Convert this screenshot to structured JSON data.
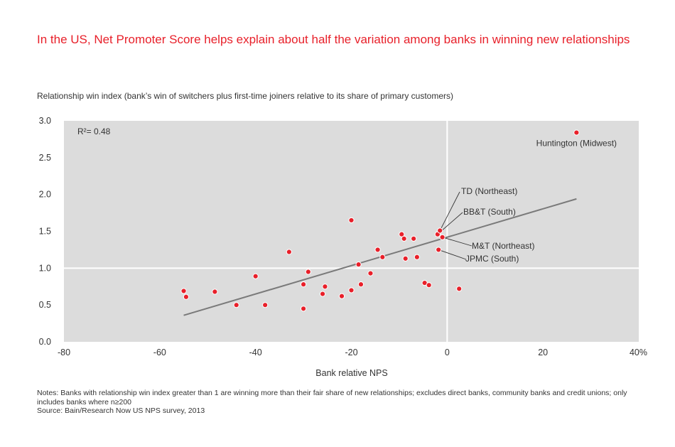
{
  "title": "In the US, Net Promoter Score helps explain about half the variation among banks in winning new relationships",
  "notes": [
    "Notes: Banks with relationship win index greater than 1 are winning more than their fair share of new relationships; excludes direct banks, community banks and credit unions; only includes banks where n≥200",
    "Source: Bain/Research Now US NPS survey, 2013"
  ],
  "colors": {
    "plot_bg": "#dcdcdc",
    "point": "#e8202a",
    "trend": "#7a7a7a",
    "title": "#e8202a"
  },
  "chart_data": {
    "type": "scatter",
    "xlabel": "Bank relative NPS",
    "ylabel": "Relationship win index (bank’s win of switchers plus first-time joiners relative to its share of primary customers)",
    "xlim": [
      -80,
      40
    ],
    "ylim": [
      0,
      3
    ],
    "x_ticks": [
      "-80",
      "-60",
      "-40",
      "-20",
      "0",
      "20",
      "40%"
    ],
    "x_tick_values": [
      -80,
      -60,
      -40,
      -20,
      0,
      20,
      40
    ],
    "y_ticks": [
      "0.0",
      "0.5",
      "1.0",
      "1.5",
      "2.0",
      "2.5",
      "3.0"
    ],
    "y_tick_values": [
      0,
      0.5,
      1.0,
      1.5,
      2.0,
      2.5,
      3.0
    ],
    "reference_lines": {
      "x": 0,
      "y": 1.0
    },
    "r_squared_label": "R²= 0.48",
    "trendline": {
      "x": [
        -55,
        27
      ],
      "y": [
        0.36,
        1.94
      ]
    },
    "points": [
      {
        "x": -55,
        "y": 0.69
      },
      {
        "x": -54.5,
        "y": 0.61
      },
      {
        "x": -48.5,
        "y": 0.68
      },
      {
        "x": -44,
        "y": 0.5
      },
      {
        "x": -40,
        "y": 0.89
      },
      {
        "x": -38,
        "y": 0.5
      },
      {
        "x": -33,
        "y": 1.22
      },
      {
        "x": -30,
        "y": 0.78
      },
      {
        "x": -30,
        "y": 0.45
      },
      {
        "x": -29,
        "y": 0.95
      },
      {
        "x": -26,
        "y": 0.65
      },
      {
        "x": -25.5,
        "y": 0.75
      },
      {
        "x": -22,
        "y": 0.62
      },
      {
        "x": -20,
        "y": 1.65
      },
      {
        "x": -20,
        "y": 0.7
      },
      {
        "x": -18.5,
        "y": 1.05
      },
      {
        "x": -18,
        "y": 0.78
      },
      {
        "x": -16,
        "y": 0.93
      },
      {
        "x": -14.5,
        "y": 1.25
      },
      {
        "x": -13.5,
        "y": 1.15
      },
      {
        "x": -9.5,
        "y": 1.46
      },
      {
        "x": -9,
        "y": 1.4
      },
      {
        "x": -8.7,
        "y": 1.13
      },
      {
        "x": -7,
        "y": 1.4
      },
      {
        "x": -6.3,
        "y": 1.15
      },
      {
        "x": -4.7,
        "y": 0.8
      },
      {
        "x": -3.8,
        "y": 0.77
      },
      {
        "x": -2,
        "y": 1.46
      },
      {
        "x": -1.5,
        "y": 1.51
      },
      {
        "x": -1,
        "y": 1.42
      },
      {
        "x": -1.8,
        "y": 1.25
      },
      {
        "x": 2.5,
        "y": 0.72
      },
      {
        "x": 27,
        "y": 2.84
      }
    ],
    "annotations": [
      {
        "text": "Huntington (Midwest)",
        "x": 27,
        "y": 2.84
      },
      {
        "text": "TD (Northeast)",
        "x": -1.5,
        "y": 1.51
      },
      {
        "text": "BB&T (South)",
        "x": -2,
        "y": 1.46
      },
      {
        "text": "M&T (Northeast)",
        "x": -1,
        "y": 1.42
      },
      {
        "text": "JPMC (South)",
        "x": -1.8,
        "y": 1.25
      }
    ]
  }
}
